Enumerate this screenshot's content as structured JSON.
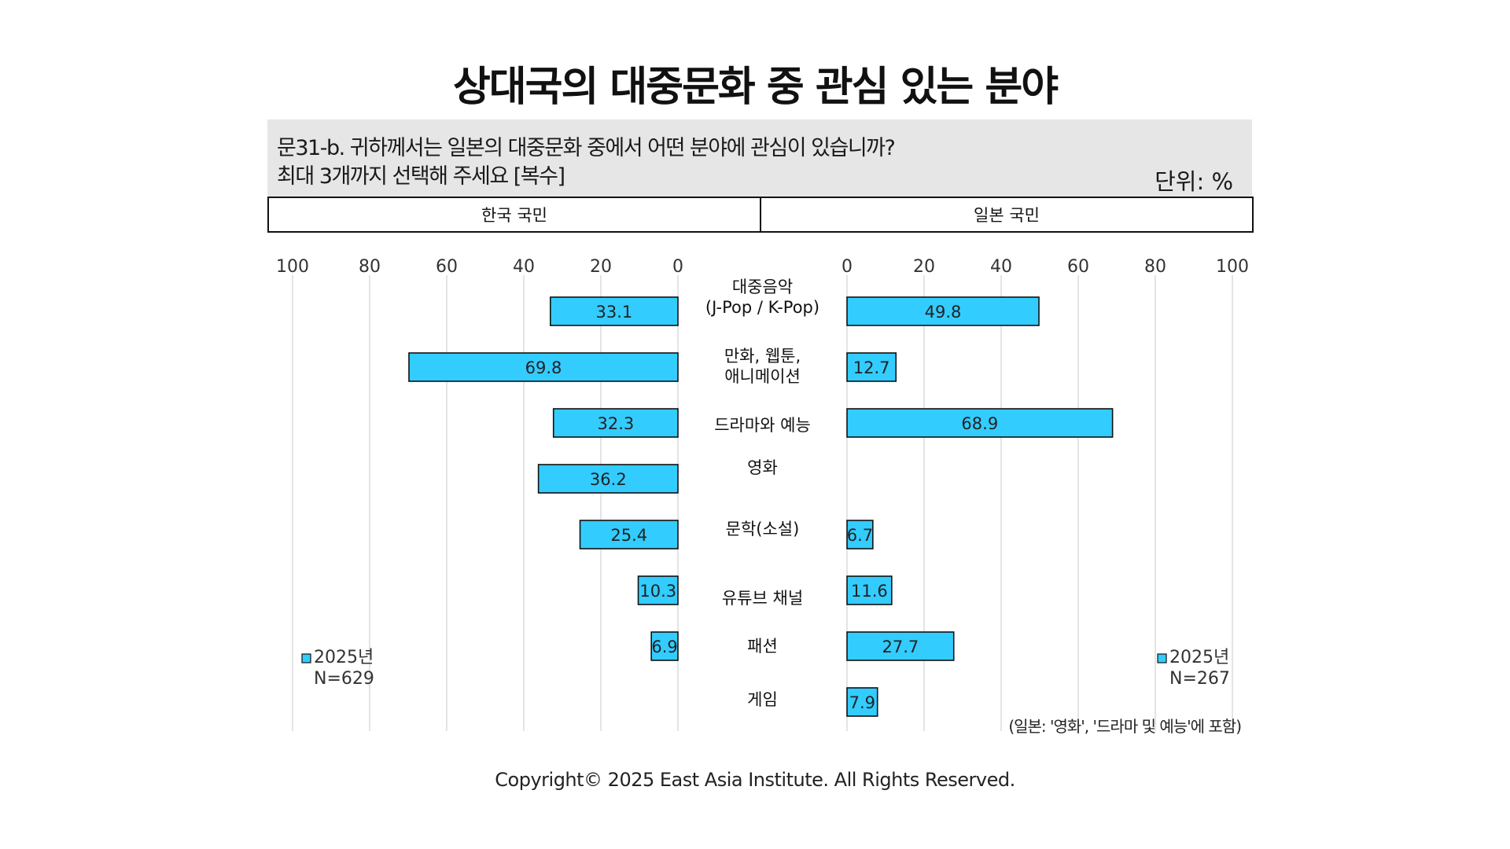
{
  "title": "상대국의 대중문화 중 관심 있는 분야",
  "question": {
    "line1": "문31-b. 귀하께서는 일본의 대중문화 중에서 어떤 분야에 관심이 있습니까?",
    "line2": "최대 3개까지 선택해 주세요 [복수]"
  },
  "unit_label": "단위: %",
  "headers": {
    "left": "한국 국민",
    "right": "일본 국민"
  },
  "note": "(일본: '영화', '드라마 및 예능'에 포함)",
  "copyright": "Copyright© 2025 East Asia Institute. All Rights Reserved.",
  "colors": {
    "bar": "#33ccff",
    "grid": "#d9d9d9"
  },
  "chart_data": [
    {
      "type": "bar",
      "orientation": "horizontal",
      "direction": "reversed",
      "panel": "한국 국민",
      "categories": [
        "대중음악 (J-Pop / K-Pop)",
        "만화, 웹툰, 애니메이션",
        "드라마와 예능",
        "영화",
        "문학(소설)",
        "유튜브 채널",
        "패션",
        "게임"
      ],
      "series": [
        {
          "name": "2025년",
          "values": [
            33.1,
            69.8,
            32.3,
            36.2,
            25.4,
            10.3,
            6.9,
            null
          ]
        }
      ],
      "legend": {
        "label": "2025년",
        "n": "N=629",
        "placement": "bottom-left"
      },
      "xlim": [
        0,
        100
      ],
      "ticks": [
        100,
        80,
        60,
        40,
        20,
        0
      ],
      "grid": true
    },
    {
      "type": "bar",
      "orientation": "horizontal",
      "direction": "normal",
      "panel": "일본 국민",
      "categories": [
        "대중음악 (J-Pop / K-Pop)",
        "만화, 웹툰, 애니메이션",
        "드라마와 예능",
        "영화",
        "문학(소설)",
        "유튜브 채널",
        "패션",
        "게임"
      ],
      "series": [
        {
          "name": "2025년",
          "values": [
            49.8,
            12.7,
            68.9,
            null,
            6.7,
            11.6,
            27.7,
            7.9
          ]
        }
      ],
      "legend": {
        "label": "2025년",
        "n": "N=267",
        "placement": "bottom-right"
      },
      "xlim": [
        0,
        100
      ],
      "ticks": [
        0,
        20,
        40,
        60,
        80,
        100
      ],
      "grid": true
    }
  ],
  "category_lines": [
    [
      "대중음악",
      "(J-Pop / K-Pop)"
    ],
    [
      "만화, 웹툰,",
      "애니메이션"
    ],
    [
      "드라마와 예능"
    ],
    [
      "영화"
    ],
    [
      "문학(소설)"
    ],
    [
      "유튜브 채널"
    ],
    [
      "패션"
    ],
    [
      "게임"
    ]
  ]
}
